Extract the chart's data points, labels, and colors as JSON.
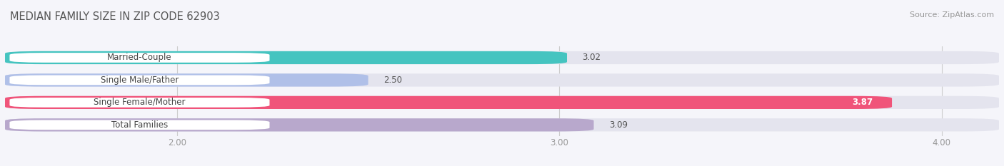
{
  "title": "MEDIAN FAMILY SIZE IN ZIP CODE 62903",
  "source": "Source: ZipAtlas.com",
  "categories": [
    "Married-Couple",
    "Single Male/Father",
    "Single Female/Mother",
    "Total Families"
  ],
  "values": [
    3.02,
    2.5,
    3.87,
    3.09
  ],
  "bar_colors": [
    "#45c4c0",
    "#b0c0e8",
    "#f0547a",
    "#b8a8cc"
  ],
  "bar_bg_color": "#e4e4ee",
  "xlim_min": 1.55,
  "xlim_max": 4.15,
  "xticks": [
    2.0,
    3.0,
    4.0
  ],
  "xtick_labels": [
    "2.00",
    "3.00",
    "4.00"
  ],
  "title_fontsize": 10.5,
  "source_fontsize": 8,
  "label_fontsize": 8.5,
  "value_fontsize": 8.5,
  "background_color": "#f5f5fa",
  "bar_height": 0.58,
  "label_bg_color": "#ffffff",
  "bar_gap": 0.42
}
